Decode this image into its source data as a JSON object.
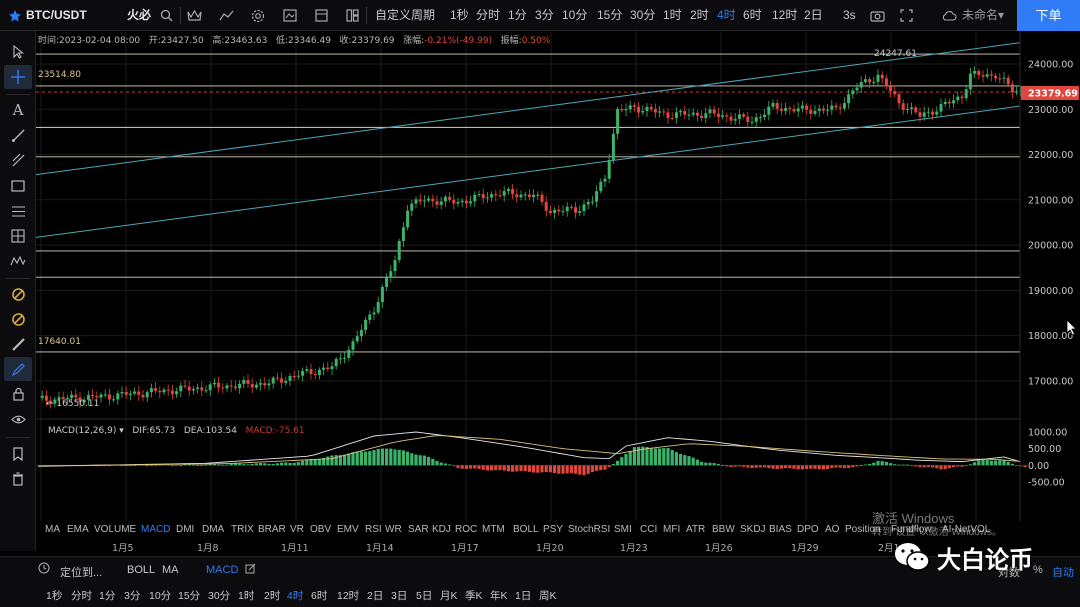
{
  "header": {
    "symbol": "BTC/USDT",
    "exchange": "火必",
    "custom_period_label": "自定义周期",
    "intervals": [
      "1秒",
      "分时",
      "1分",
      "3分",
      "10分",
      "15分",
      "30分",
      "1时",
      "2时",
      "4时",
      "6时",
      "12时",
      "2日"
    ],
    "active_interval": "4时",
    "countdown": "3s",
    "account_label": "未命名",
    "order_button": "下单"
  },
  "ohlc_info": {
    "time_label": "时间:",
    "time": "2023-02-04 08:00",
    "open_label": "开:",
    "open": "23427.50",
    "high_label": "高:",
    "high": "23463.63",
    "low_label": "低:",
    "low": "23346.49",
    "close_label": "收:",
    "close": "23379.69",
    "change_label": "涨幅:",
    "change": "-0.21%(-49.99)",
    "amplitude_label": "振幅:",
    "amplitude": "0.50%"
  },
  "price_axis": {
    "ticks": [
      "24000.00",
      "23000.00",
      "22000.00",
      "21000.00",
      "20000.00",
      "19000.00",
      "18000.00",
      "17000.00"
    ],
    "current_price": "23379.69"
  },
  "macd_axis": {
    "ticks": [
      "1000.00",
      "500.00",
      "0.00",
      "-500.00"
    ]
  },
  "annotations": {
    "high_mark": "24247.61",
    "level_top": "23514.80",
    "level_mid": "17640.01",
    "low_mark": "← 16550.11"
  },
  "macd": {
    "label": "MACD(12,26,9)",
    "dif_label": "DIF:",
    "dif": "65.73",
    "dea_label": "DEA:",
    "dea": "103.54",
    "macd_label": "MACD:",
    "macd": "-75.61"
  },
  "indicators": [
    "MA",
    "EMA",
    "VOLUME",
    "MACD",
    "DMI",
    "DMA",
    "TRIX",
    "BRAR",
    "VR",
    "OBV",
    "EMV",
    "RSI",
    "WR",
    "SAR",
    "KDJ",
    "ROC",
    "MTM",
    "BOLL",
    "PSY",
    "StochRSI",
    "SMI",
    "CCI",
    "MFI",
    "ATR",
    "BBW",
    "SKDJ",
    "BIAS",
    "DPO",
    "AO",
    "Position",
    "Fundflow",
    "AI-NetVOL"
  ],
  "active_indicator": "MACD",
  "dates": [
    "1月5",
    "1月8",
    "1月11",
    "1月14",
    "1月17",
    "1月20",
    "1月23",
    "1月26",
    "1月29",
    "2月1"
  ],
  "bottom": {
    "locate_label": "定位到...",
    "tags": [
      "BOLL",
      "MA",
      "MACD"
    ],
    "auto_label": "自动",
    "percent_label": "%",
    "log_label": "对数"
  },
  "bottom_intervals": [
    "1秒",
    "分时",
    "1分",
    "3分",
    "10分",
    "15分",
    "30分",
    "1时",
    "2时",
    "4时",
    "6时",
    "12时",
    "2日",
    "3日",
    "5日",
    "月K",
    "季K",
    "年K",
    "1日",
    "周K"
  ],
  "watermark": {
    "line1": "激活 Windows",
    "line2": "转到“设置”以激活 Windows。"
  },
  "wechat_account": "大白论币",
  "colors": {
    "up": "#3cb36a",
    "down": "#e0463d",
    "accent": "#2f7cf6",
    "trendline": "#4aa8b8"
  }
}
